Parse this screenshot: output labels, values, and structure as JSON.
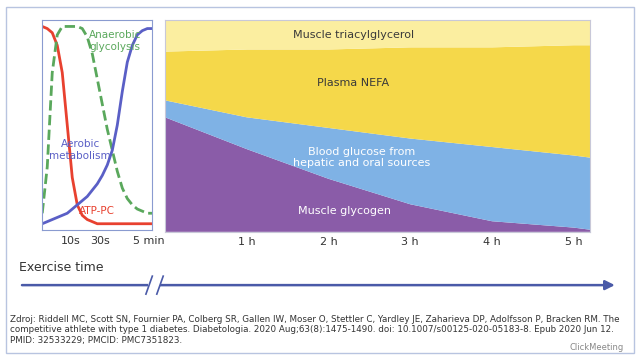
{
  "chart_data": [
    {
      "type": "line",
      "x": [
        0,
        0.5,
        1,
        1.5,
        2,
        2.5,
        3,
        3.5,
        4,
        4.5,
        5,
        5.5,
        6,
        6.5,
        7,
        7.5,
        8,
        8.5,
        9,
        9.5,
        10,
        10.5,
        11
      ],
      "xlim": [
        0,
        11
      ],
      "xticks": [
        {
          "value": 2.8,
          "label": "10s"
        },
        {
          "value": 5.8,
          "label": "30s"
        },
        {
          "value": 10.6,
          "label": "5 min"
        }
      ],
      "ylim": [
        0,
        100
      ],
      "tick_labels": "x",
      "series": [
        {
          "name": "ATP-PC",
          "color": "#e8412f",
          "line_style": "solid",
          "values": [
            97,
            96,
            94,
            88,
            75,
            50,
            25,
            12,
            7,
            5,
            4,
            3,
            3,
            3,
            3,
            3,
            3,
            3,
            3,
            3,
            3,
            3,
            3
          ]
        },
        {
          "name": "Anaerobic\nglycolysis",
          "color": "#5aa85c",
          "line_style": "dashed",
          "values": [
            8,
            30,
            75,
            93,
            97,
            97,
            97,
            97,
            96,
            92,
            84,
            72,
            60,
            48,
            38,
            28,
            20,
            15,
            12,
            10,
            9,
            8,
            8
          ]
        },
        {
          "name": "Aerobic\nmetabolism",
          "color": "#5a5fc6",
          "line_style": "solid",
          "values": [
            3,
            4,
            5,
            6,
            7,
            8,
            10,
            12,
            14,
            16,
            19,
            22,
            26,
            31,
            38,
            50,
            66,
            80,
            88,
            93,
            95,
            96,
            96
          ]
        }
      ]
    },
    {
      "type": "area",
      "stacked": true,
      "x": [
        0,
        1,
        2,
        3,
        4,
        5,
        5.2
      ],
      "xlim": [
        0,
        5.2
      ],
      "xticks": [
        {
          "value": 1,
          "label": "1 h"
        },
        {
          "value": 2,
          "label": "2 h"
        },
        {
          "value": 3,
          "label": "3 h"
        },
        {
          "value": 4,
          "label": "4 h"
        },
        {
          "value": 5,
          "label": "5 h"
        }
      ],
      "ylim": [
        0,
        100
      ],
      "tick_labels": "x",
      "series": [
        {
          "name": "Muscle glycogen",
          "color": "#8a5ca8",
          "values": [
            54,
            39,
            25,
            13,
            5,
            2,
            1
          ]
        },
        {
          "name": "Blood glucose from\nhepatic and oral sources",
          "color": "#7fb2e5",
          "values": [
            8,
            15,
            24,
            31,
            35,
            34,
            34
          ]
        },
        {
          "name": "Plasma NEFA",
          "color": "#f5d84a",
          "values": [
            23,
            32,
            37,
            43,
            47,
            52,
            53
          ]
        },
        {
          "name": "Muscle triacylglycerol",
          "color": "#fbeea0",
          "values": [
            15,
            14,
            14,
            13,
            13,
            12,
            12
          ]
        }
      ]
    }
  ],
  "footer": {
    "axis_label": "Exercise time",
    "source": "Zdroj: Riddell MC, Scott SN, Fournier PA, Colberg SR, Gallen IW, Moser O, Stettler C, Yardley JE, Zaharieva DP, Adolfsson P, Bracken RM. The competitive athlete with type 1 diabetes. Diabetologia. 2020 Aug;63(8):1475-1490. doi: 10.1007/s00125-020-05183-8. Epub 2020 Jun 12. PMID: 32533229; PMCID: PMC7351823.",
    "logo": "ClickMeeting"
  }
}
